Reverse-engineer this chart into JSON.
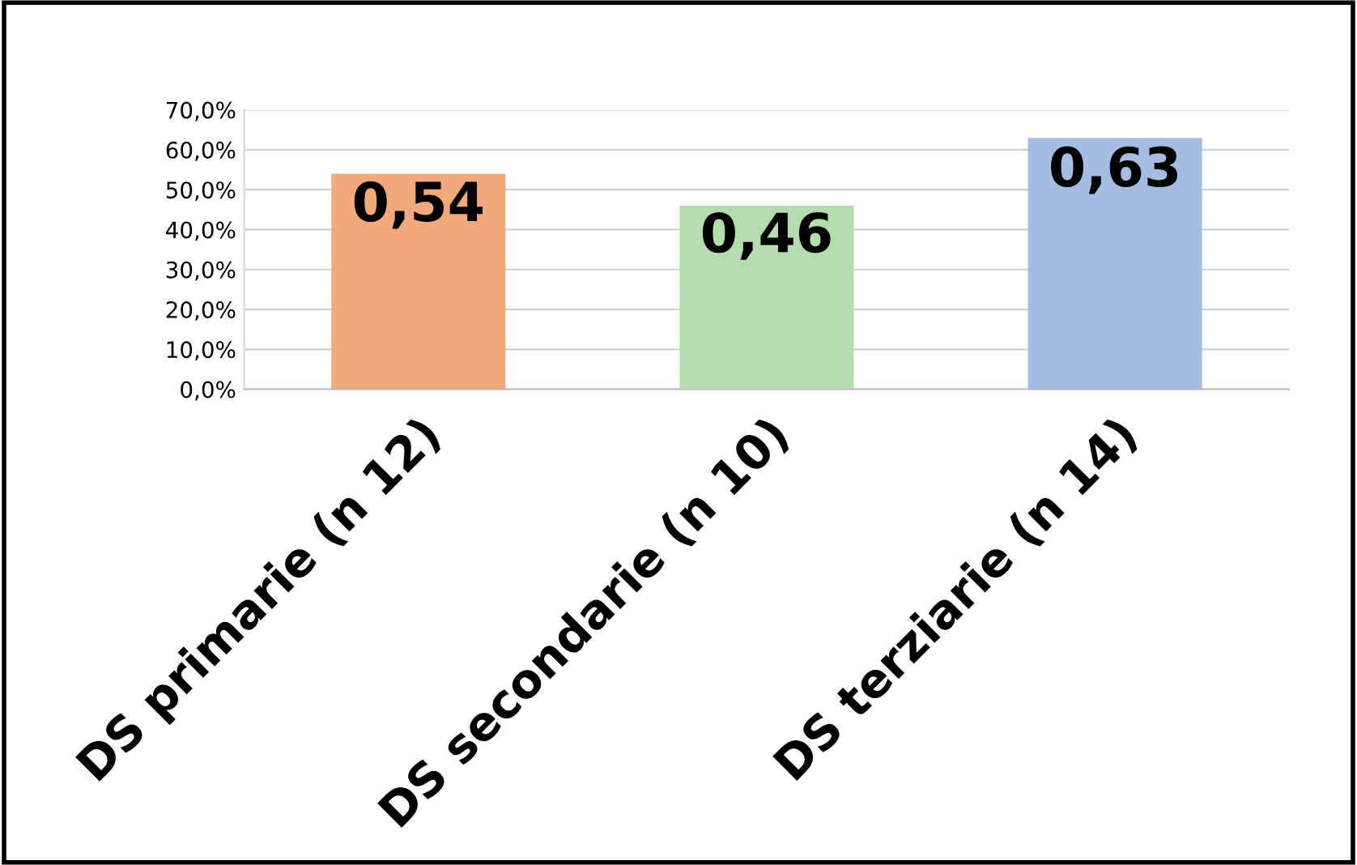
{
  "chart_data": {
    "type": "bar",
    "categories": [
      "DS primarie (n 12)",
      "DS secondarie (n 10)",
      "DS terziarie (n 14)"
    ],
    "values": [
      0.54,
      0.46,
      0.63
    ],
    "colors": [
      "#f4a97c",
      "#b5dcae",
      "#a5bde3"
    ],
    "value_labels": [
      "0,54",
      "0,46",
      "0,63"
    ],
    "ylim": [
      0,
      0.7
    ],
    "yticks": [
      {
        "value": 0,
        "label": "0,0%"
      },
      {
        "value": 0.1,
        "label": "10,0%"
      },
      {
        "value": 0.2,
        "label": "20,0%"
      },
      {
        "value": 0.3,
        "label": "30,0%"
      },
      {
        "value": 0.4,
        "label": "40,0%"
      },
      {
        "value": 0.5,
        "label": "50,0%"
      },
      {
        "value": 0.6,
        "label": "60,0%"
      },
      {
        "value": 0.7,
        "label": "70,0%"
      }
    ],
    "grid": "y",
    "legend": false
  }
}
